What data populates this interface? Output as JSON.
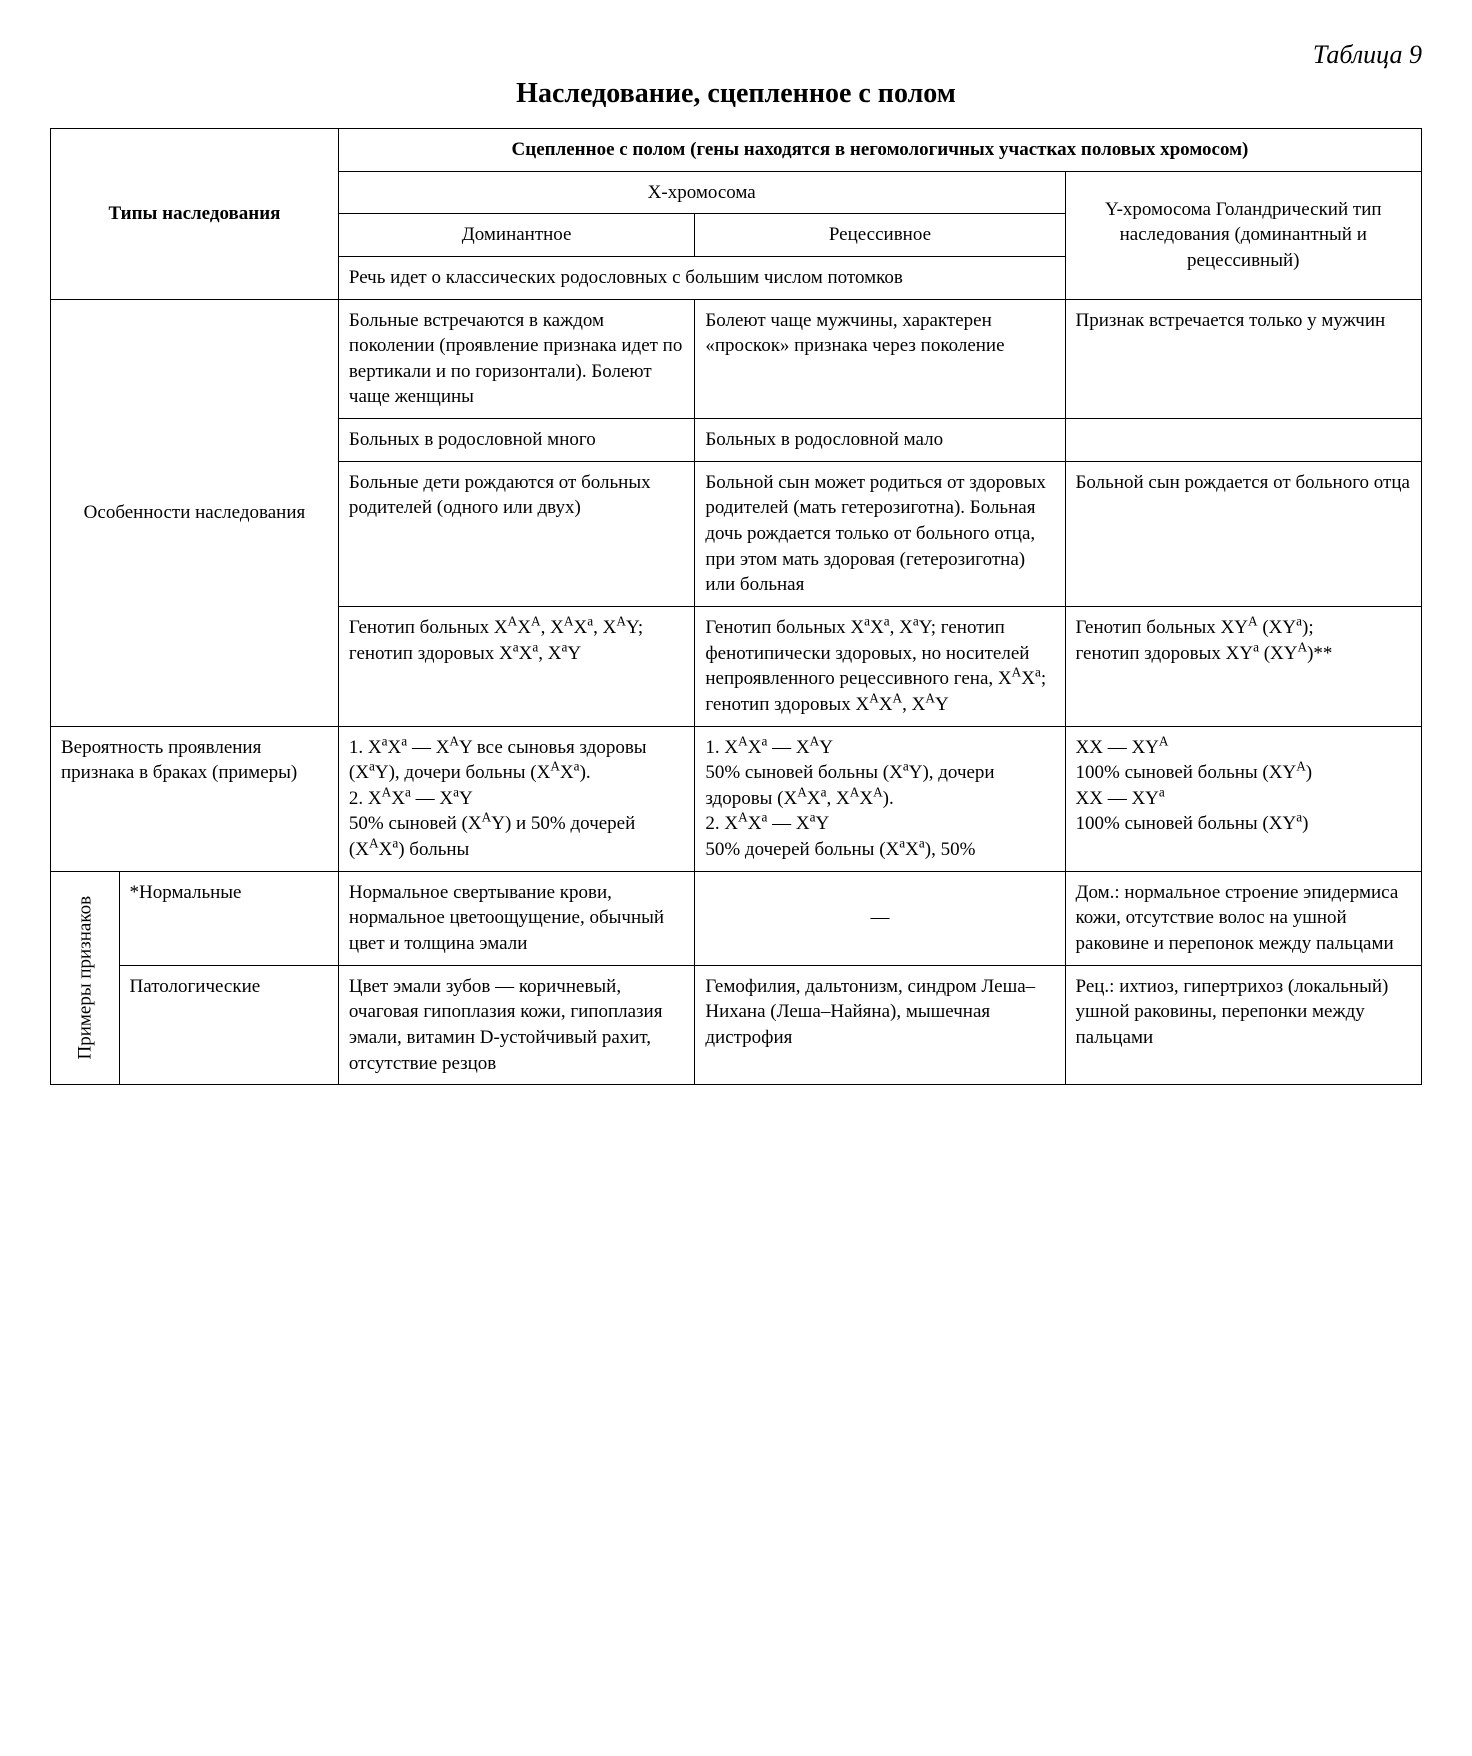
{
  "table_label": "Таблица 9",
  "title": "Наследование, сцепленное с полом",
  "header": {
    "col_types": "Типы наследования",
    "sex_linked": "Сцепленное с полом (гены находятся в негомологичных участках половых хромосом)",
    "x_chrom": "X-хромосома",
    "y_chrom": "Y-хромосома Голандрический тип наследования (доминантный и рецессивный)",
    "dominant": "Доминантное",
    "recessive": "Рецессивное",
    "note": "Речь идет о классических родословных с большим числом потомков"
  },
  "row_features_label": "Особенности наследования",
  "features": [
    {
      "d": "Больные встречаются в каждом поколении (проявление признака идет по вертикали и по горизонтали). Болеют чаще женщины",
      "r": "Болеют чаще мужчины, характерен «проскок» признака через поколение",
      "y": "Признак встречается только у мужчин"
    },
    {
      "d": "Больных в родословной много",
      "r": "Больных в родословной мало",
      "y": ""
    },
    {
      "d": "Больные дети рождаются от больных родителей (одного или двух)",
      "r": "Больной сын может родиться от здоровых родителей (мать гетерозиготна). Больная дочь рождается только от больного отца, при этом мать здоровая (гетерозиготна) или больная",
      "y": "Больной сын рождается от больного отца"
    }
  ],
  "genotype": {
    "d_html": "Генотип больных X<sup>A</sup>X<sup>A</sup>, X<sup>A</sup>X<sup>a</sup>, X<sup>A</sup>Y;<br>генотип здоровых X<sup>a</sup>X<sup>a</sup>, X<sup>a</sup>Y",
    "r_html": "Генотип больных X<sup>a</sup>X<sup>a</sup>, X<sup>a</sup>Y; генотип фенотипически здоровых, но носителей непроявленного рецессивного гена, X<sup>A</sup>X<sup>a</sup>;<br>генотип здоровых X<sup>A</sup>X<sup>A</sup>, X<sup>A</sup>Y",
    "y_html": "Генотип больных XY<sup>A</sup> (XY<sup>a</sup>);<br>генотип здоровых XY<sup>a</sup> (XY<sup>A</sup>)**"
  },
  "probability": {
    "label": "Вероятность проявления признака в браках (примеры)",
    "d_html": "1. X<sup>a</sup>X<sup>a</sup> — X<sup>A</sup>Y все сыновья здоровы (X<sup>a</sup>Y), дочери больны (X<sup>A</sup>X<sup>a</sup>).<br>2. X<sup>A</sup>X<sup>a</sup> — X<sup>a</sup>Y<br>50% сыновей (X<sup>A</sup>Y) и 50% дочерей (X<sup>A</sup>X<sup>a</sup>) больны",
    "r_html": "1. X<sup>A</sup>X<sup>a</sup> — X<sup>A</sup>Y<br>50% сыновей больны (X<sup>a</sup>Y), дочери здоровы (X<sup>A</sup>X<sup>a</sup>, X<sup>A</sup>X<sup>A</sup>).<br>2. X<sup>A</sup>X<sup>a</sup> — X<sup>a</sup>Y<br>50% дочерей больны (X<sup>a</sup>X<sup>a</sup>), 50%",
    "y_html": "XX — XY<sup>A</sup><br>100% сыновей больны (XY<sup>A</sup>)<br>XX — XY<sup>a</sup><br>100% сыновей больны (XY<sup>a</sup>)"
  },
  "examples": {
    "vlabel": "Примеры признаков",
    "normal_label": "*Нормальные",
    "normal": {
      "d": "Нормальное свертывание крови, нормальное цветоощущение, обычный цвет и толщина эмали",
      "r": "—",
      "y": "Дом.: нормальное строение эпидермиса кожи, отсутствие волос на ушной раковине и перепонок между пальцами"
    },
    "path_label": "Патологические",
    "path": {
      "d": "Цвет эмали зубов — коричневый, очаговая гипоплазия кожи, гипоплазия эмали, витамин D-устойчивый рахит, отсутствие резцов",
      "r": "Гемофилия, дальтонизм, синдром Леша–Нихана (Леша–Найяна), мышечная дистрофия",
      "y": "Рец.: ихтиоз, гипертрихоз (локальный) ушной раковины, перепонки между пальцами"
    }
  }
}
